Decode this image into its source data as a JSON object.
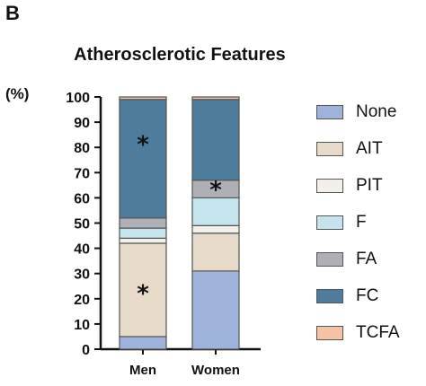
{
  "panel_letter": "B",
  "chart_data": {
    "type": "bar",
    "stacked": true,
    "title": "Atherosclerotic Features",
    "y_unit": "(%)",
    "ylim": [
      0,
      100
    ],
    "yticks": [
      0,
      10,
      20,
      30,
      40,
      50,
      60,
      70,
      80,
      90,
      100
    ],
    "categories": [
      "Men",
      "Women"
    ],
    "series": [
      {
        "name": "None",
        "color": "#9db3db",
        "values": [
          5,
          31
        ]
      },
      {
        "name": "AIT",
        "color": "#e7dac8",
        "values": [
          37,
          15
        ]
      },
      {
        "name": "PIT",
        "color": "#f2f0e8",
        "values": [
          2,
          3
        ]
      },
      {
        "name": "F",
        "color": "#c4e4ee",
        "values": [
          4,
          11
        ]
      },
      {
        "name": "FA",
        "color": "#aeb0b5",
        "values": [
          4,
          7
        ]
      },
      {
        "name": "FC",
        "color": "#4d7c9c",
        "values": [
          47,
          32
        ]
      },
      {
        "name": "TCFA",
        "color": "#f5c4a4",
        "values": [
          1,
          1
        ]
      }
    ],
    "annotations": [
      {
        "text": "*",
        "category": "Men",
        "y": 82
      },
      {
        "text": "*",
        "category": "Men",
        "y": 23
      },
      {
        "text": "*",
        "category": "Women",
        "y": 64
      }
    ],
    "legend_position": "right"
  }
}
